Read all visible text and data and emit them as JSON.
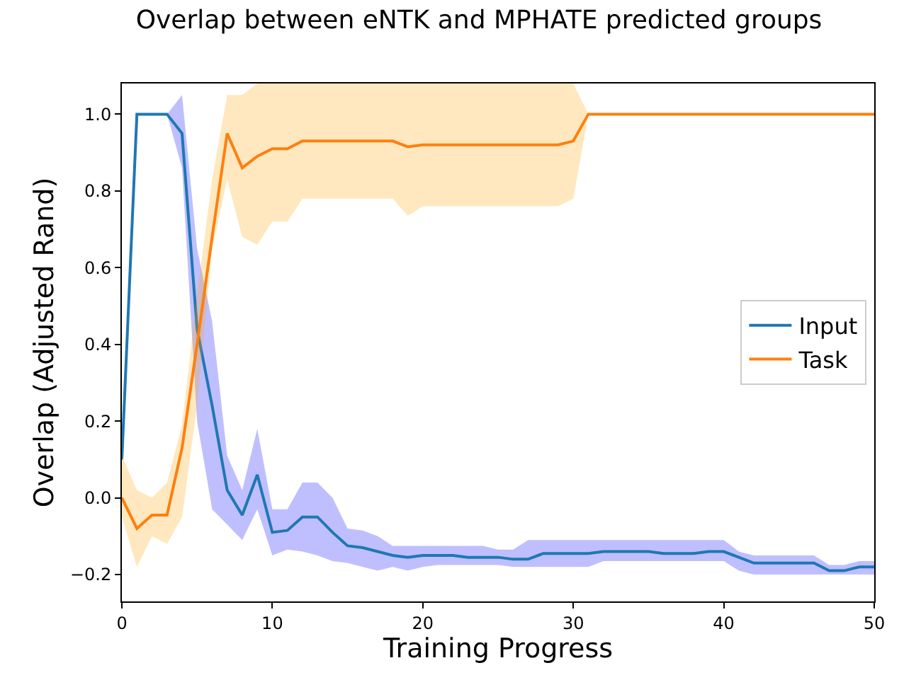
{
  "chart_data": {
    "type": "line",
    "title": "Overlap between eNTK and MPHATE predicted groups",
    "xlabel": "Training Progress",
    "ylabel": "Overlap (Adjusted Rand)",
    "x": [
      0,
      1,
      2,
      3,
      4,
      5,
      6,
      7,
      8,
      9,
      10,
      11,
      12,
      13,
      14,
      15,
      16,
      17,
      18,
      19,
      20,
      21,
      22,
      23,
      24,
      25,
      26,
      27,
      28,
      29,
      30,
      31,
      32,
      33,
      34,
      35,
      36,
      37,
      38,
      39,
      40,
      41,
      42,
      43,
      44,
      45,
      46,
      47,
      48,
      49,
      50
    ],
    "series": [
      {
        "name": "Input",
        "color": "#1f77b4",
        "values": [
          0.1,
          1.0,
          1.0,
          1.0,
          0.95,
          0.44,
          0.24,
          0.02,
          -0.045,
          0.06,
          -0.09,
          -0.085,
          -0.05,
          -0.05,
          -0.09,
          -0.125,
          -0.13,
          -0.14,
          -0.15,
          -0.155,
          -0.15,
          -0.15,
          -0.15,
          -0.155,
          -0.155,
          -0.155,
          -0.16,
          -0.16,
          -0.145,
          -0.145,
          -0.145,
          -0.145,
          -0.14,
          -0.14,
          -0.14,
          -0.14,
          -0.145,
          -0.145,
          -0.145,
          -0.14,
          -0.14,
          -0.155,
          -0.17,
          -0.17,
          -0.17,
          -0.17,
          -0.17,
          -0.19,
          -0.19,
          -0.18,
          -0.18
        ],
        "lower": [
          0.1,
          1.0,
          1.0,
          1.0,
          0.86,
          0.2,
          -0.03,
          -0.07,
          -0.11,
          -0.03,
          -0.15,
          -0.135,
          -0.14,
          -0.15,
          -0.165,
          -0.17,
          -0.18,
          -0.19,
          -0.18,
          -0.19,
          -0.18,
          -0.175,
          -0.175,
          -0.175,
          -0.175,
          -0.175,
          -0.18,
          -0.18,
          -0.18,
          -0.18,
          -0.18,
          -0.18,
          -0.165,
          -0.165,
          -0.165,
          -0.165,
          -0.165,
          -0.165,
          -0.165,
          -0.165,
          -0.165,
          -0.19,
          -0.2,
          -0.2,
          -0.2,
          -0.2,
          -0.2,
          -0.2,
          -0.2,
          -0.2,
          -0.2
        ],
        "upper": [
          0.1,
          1.0,
          1.0,
          1.0,
          1.05,
          0.65,
          0.46,
          0.11,
          0.02,
          0.18,
          -0.03,
          -0.03,
          0.04,
          0.04,
          0.0,
          -0.08,
          -0.085,
          -0.1,
          -0.125,
          -0.125,
          -0.125,
          -0.125,
          -0.125,
          -0.125,
          -0.125,
          -0.135,
          -0.135,
          -0.11,
          -0.11,
          -0.11,
          -0.11,
          -0.11,
          -0.11,
          -0.11,
          -0.11,
          -0.11,
          -0.11,
          -0.11,
          -0.11,
          -0.11,
          -0.11,
          -0.14,
          -0.15,
          -0.15,
          -0.15,
          -0.15,
          -0.15,
          -0.175,
          -0.175,
          -0.165,
          -0.165
        ]
      },
      {
        "name": "Task",
        "color": "#ff7f0e",
        "values": [
          0.0,
          -0.08,
          -0.045,
          -0.045,
          0.13,
          0.4,
          0.68,
          0.95,
          0.86,
          0.89,
          0.91,
          0.91,
          0.93,
          0.93,
          0.93,
          0.93,
          0.93,
          0.93,
          0.93,
          0.915,
          0.92,
          0.92,
          0.92,
          0.92,
          0.92,
          0.92,
          0.92,
          0.92,
          0.92,
          0.92,
          0.93,
          1.0,
          1.0,
          1.0,
          1.0,
          1.0,
          1.0,
          1.0,
          1.0,
          1.0,
          1.0,
          1.0,
          1.0,
          1.0,
          1.0,
          1.0,
          1.0,
          1.0,
          1.0,
          1.0,
          1.0
        ],
        "lower": [
          -0.05,
          -0.18,
          -0.1,
          -0.12,
          -0.05,
          0.24,
          0.65,
          0.83,
          0.68,
          0.66,
          0.72,
          0.72,
          0.78,
          0.78,
          0.78,
          0.78,
          0.78,
          0.78,
          0.78,
          0.735,
          0.76,
          0.76,
          0.76,
          0.76,
          0.76,
          0.76,
          0.76,
          0.76,
          0.76,
          0.76,
          0.78,
          1.0,
          1.0,
          1.0,
          1.0,
          1.0,
          1.0,
          1.0,
          1.0,
          1.0,
          1.0,
          1.0,
          1.0,
          1.0,
          1.0,
          1.0,
          1.0,
          1.0,
          1.0,
          1.0,
          1.0
        ],
        "upper": [
          0.11,
          0.02,
          0.0,
          0.04,
          0.19,
          0.53,
          0.83,
          1.05,
          1.05,
          1.08,
          1.08,
          1.08,
          1.08,
          1.08,
          1.08,
          1.08,
          1.08,
          1.08,
          1.08,
          1.08,
          1.08,
          1.08,
          1.08,
          1.08,
          1.08,
          1.08,
          1.08,
          1.08,
          1.08,
          1.08,
          1.08,
          1.0,
          1.0,
          1.0,
          1.0,
          1.0,
          1.0,
          1.0,
          1.0,
          1.0,
          1.0,
          1.0,
          1.0,
          1.0,
          1.0,
          1.0,
          1.0,
          1.0,
          1.0,
          1.0,
          1.0
        ]
      }
    ],
    "xlim": [
      0,
      50
    ],
    "xticks": [
      0,
      10,
      20,
      30,
      40,
      50
    ],
    "ylim": [
      -0.27,
      1.08
    ],
    "yticks": [
      {
        "value": -0.2,
        "label": "−0.2"
      },
      {
        "value": 0,
        "label": "0.0"
      },
      {
        "value": 0.2,
        "label": "0.2"
      },
      {
        "value": 0.4,
        "label": "0.4"
      },
      {
        "value": 0.6,
        "label": "0.6"
      },
      {
        "value": 0.8,
        "label": "0.8"
      },
      {
        "value": 1,
        "label": "1.0"
      }
    ],
    "legend": "right"
  }
}
